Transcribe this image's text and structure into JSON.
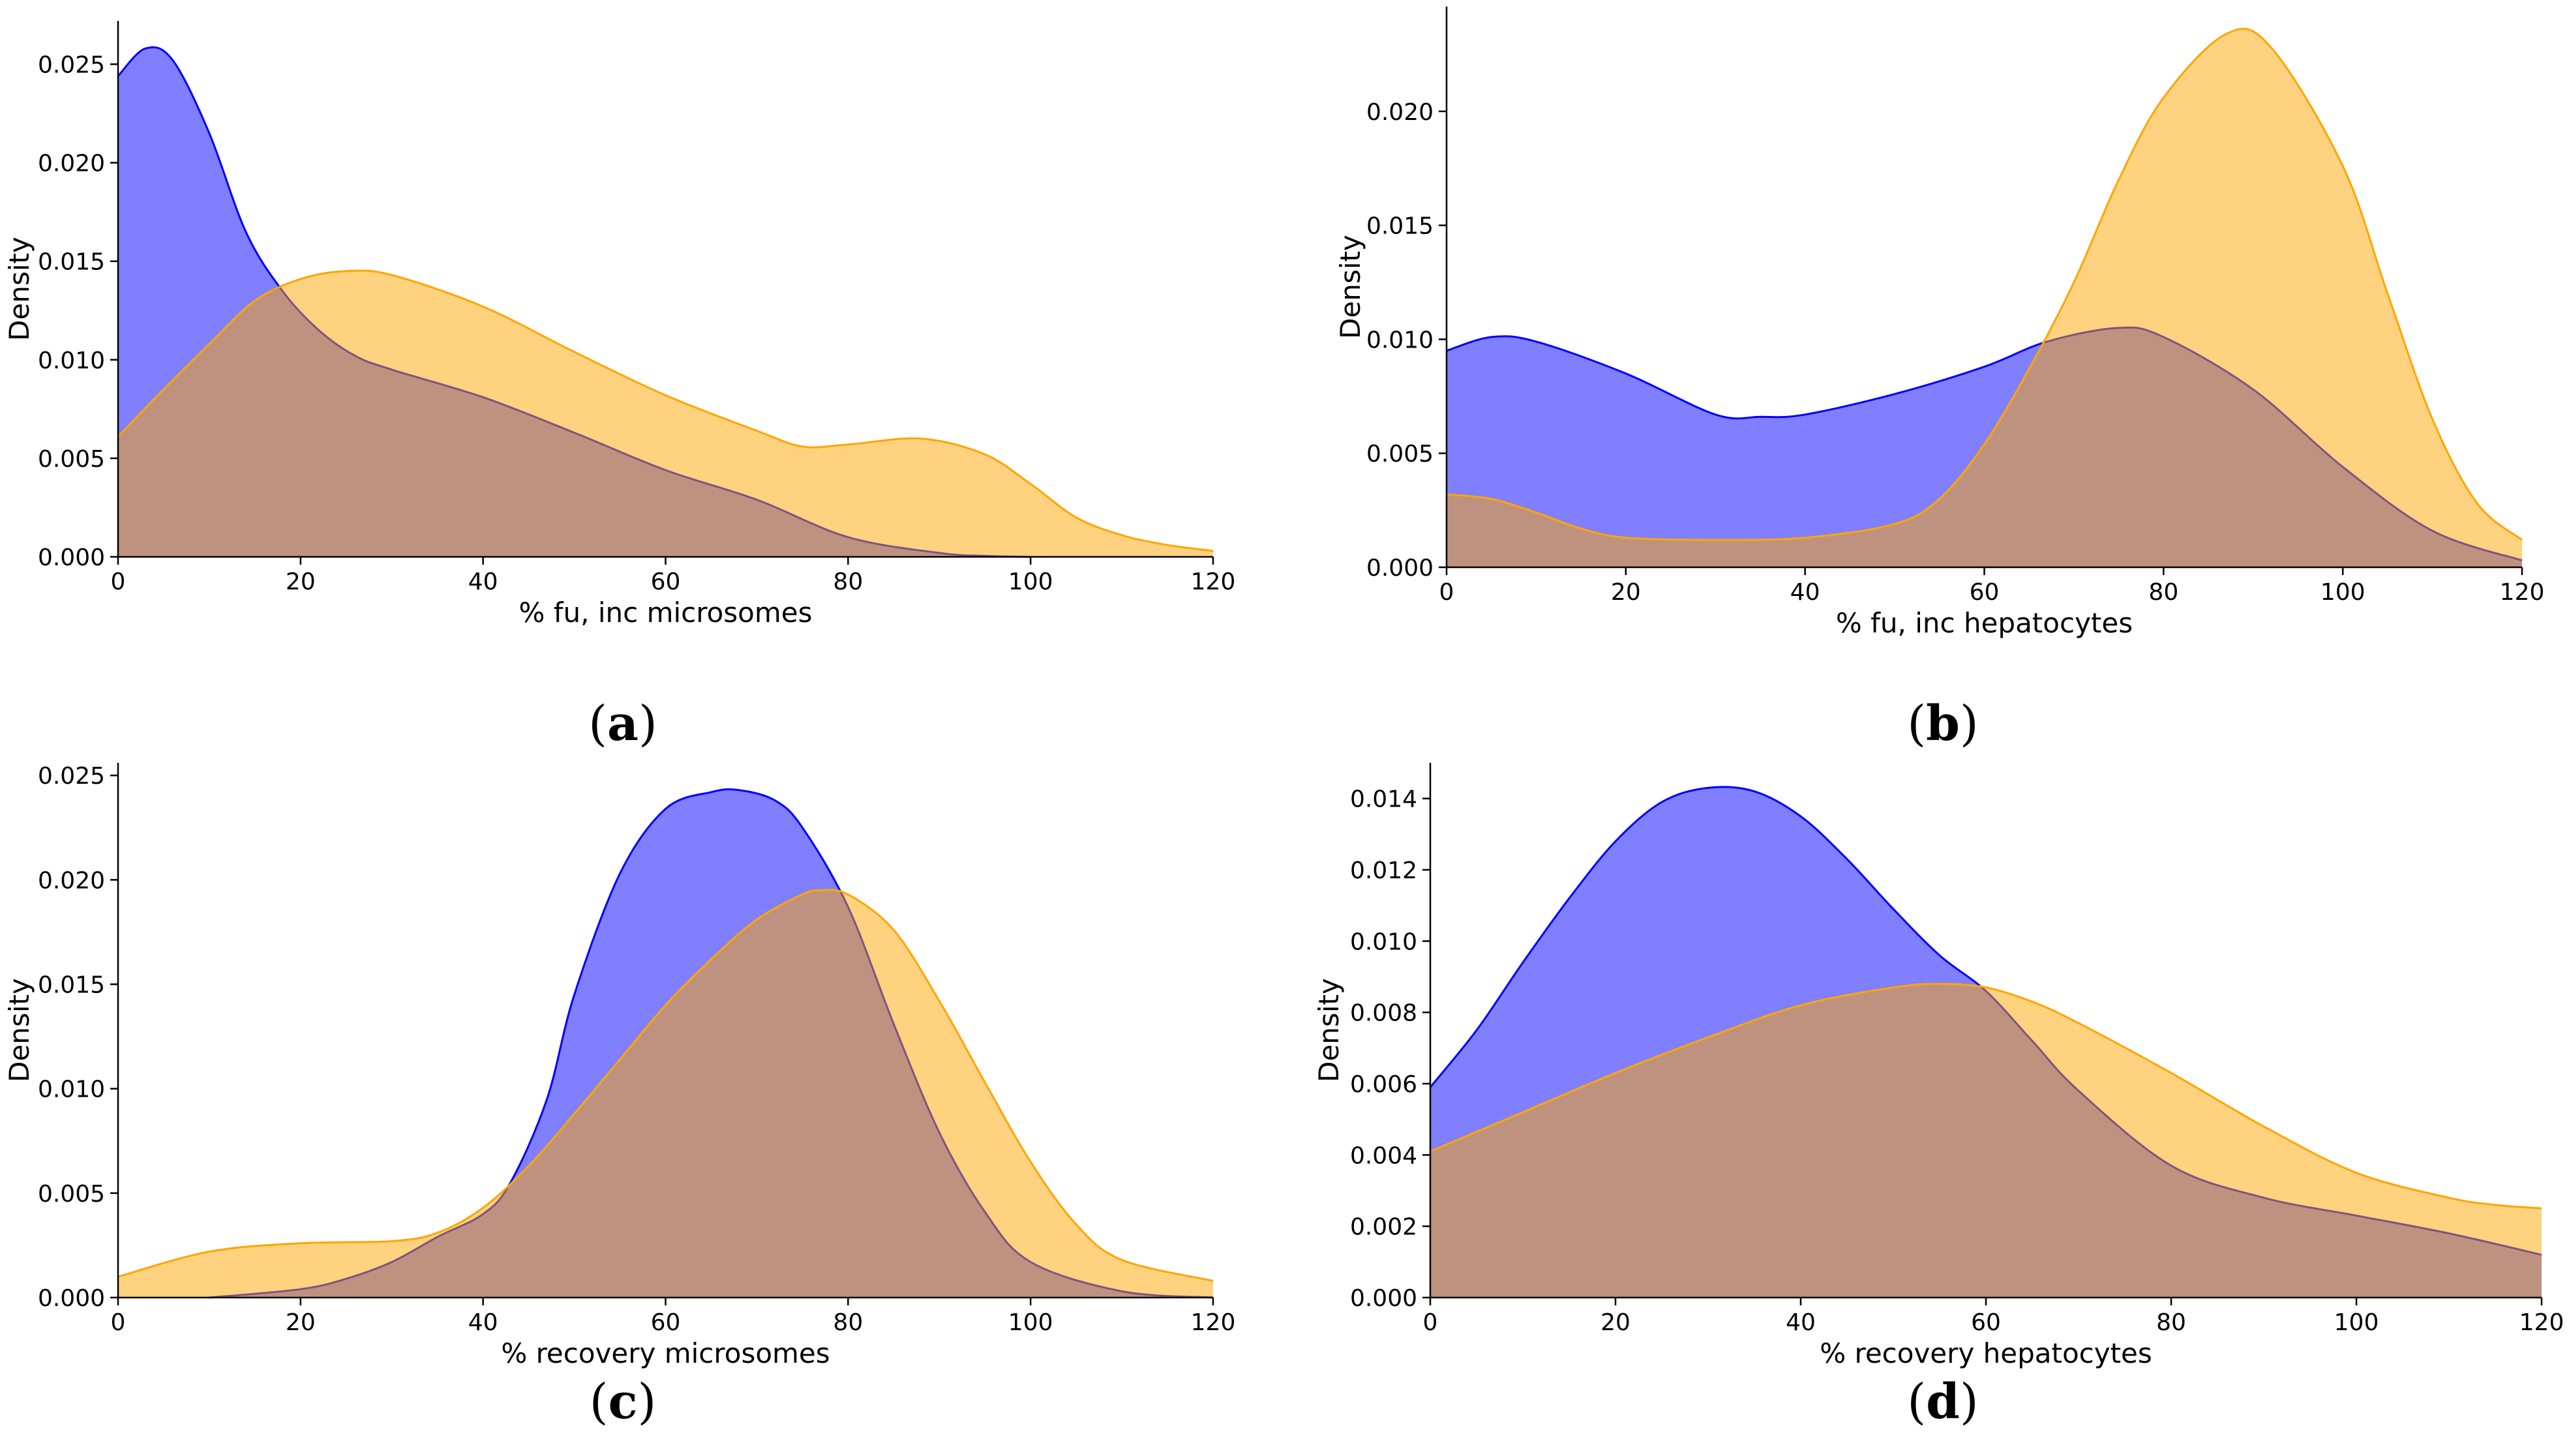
{
  "chart_data": [
    {
      "type": "area",
      "panel_label": [
        "(",
        "a",
        ")"
      ],
      "xlabel": "% fu, inc microsomes",
      "ylabel": "Density",
      "xlim": [
        0,
        120
      ],
      "ylim": [
        0,
        0.0272
      ],
      "xticks": [
        "0",
        "20",
        "40",
        "60",
        "80",
        "100",
        "120"
      ],
      "yticks": [
        "0.000",
        "0.005",
        "0.010",
        "0.015",
        "0.020",
        "0.025"
      ],
      "series": [
        {
          "name": "blue",
          "color": "#0000ff",
          "x": [
            0,
            3,
            6,
            10,
            14,
            18,
            22,
            26,
            30,
            40,
            50,
            60,
            70,
            80,
            90,
            95,
            100
          ],
          "y": [
            0.0244,
            0.0258,
            0.0252,
            0.0215,
            0.0165,
            0.0135,
            0.0115,
            0.0102,
            0.0095,
            0.0081,
            0.0063,
            0.0044,
            0.0029,
            0.001,
            0.0002,
            5e-05,
            0
          ]
        },
        {
          "name": "orange",
          "color": "#ffa500",
          "x": [
            0,
            5,
            10,
            15,
            20,
            25,
            30,
            40,
            50,
            60,
            70,
            75,
            80,
            88,
            95,
            100,
            105,
            110,
            115,
            120
          ],
          "y": [
            0.0061,
            0.0085,
            0.0108,
            0.013,
            0.0141,
            0.0145,
            0.0143,
            0.0127,
            0.0104,
            0.0082,
            0.0064,
            0.0056,
            0.0057,
            0.006,
            0.0052,
            0.0037,
            0.002,
            0.0011,
            0.0006,
            0.0003
          ]
        }
      ]
    },
    {
      "type": "area",
      "panel_label": [
        "(",
        "b",
        ")"
      ],
      "xlabel": "% fu, inc hepatocytes",
      "ylabel": "Density",
      "xlim": [
        0,
        120
      ],
      "ylim": [
        0,
        0.0246
      ],
      "xticks": [
        "0",
        "20",
        "40",
        "60",
        "80",
        "100",
        "120"
      ],
      "yticks": [
        "0.000",
        "0.005",
        "0.010",
        "0.015",
        "0.020"
      ],
      "series": [
        {
          "name": "blue",
          "color": "#0000ff",
          "x": [
            0,
            5,
            10,
            20,
            30,
            35,
            40,
            50,
            60,
            67,
            75,
            80,
            90,
            100,
            110,
            120
          ],
          "y": [
            0.0095,
            0.0101,
            0.0099,
            0.0085,
            0.0067,
            0.0066,
            0.0067,
            0.0076,
            0.0088,
            0.0099,
            0.0105,
            0.0101,
            0.0078,
            0.0044,
            0.0016,
            0.0003
          ]
        },
        {
          "name": "orange",
          "color": "#ffa500",
          "x": [
            0,
            5,
            10,
            15,
            20,
            30,
            40,
            50,
            55,
            60,
            65,
            70,
            75,
            80,
            87,
            92,
            100,
            105,
            110,
            115,
            120
          ],
          "y": [
            0.0032,
            0.003,
            0.0024,
            0.0017,
            0.0013,
            0.0012,
            0.0013,
            0.0019,
            0.003,
            0.0054,
            0.0087,
            0.0125,
            0.017,
            0.0206,
            0.0234,
            0.0228,
            0.0176,
            0.012,
            0.0065,
            0.0028,
            0.0012
          ]
        }
      ]
    },
    {
      "type": "area",
      "panel_label": [
        "(",
        "c",
        ")"
      ],
      "xlabel": "% recovery microsomes",
      "ylabel": "Density",
      "xlim": [
        0,
        120
      ],
      "ylim": [
        0,
        0.0256
      ],
      "xticks": [
        "0",
        "20",
        "40",
        "60",
        "80",
        "100",
        "120"
      ],
      "yticks": [
        "0.000",
        "0.005",
        "0.010",
        "0.015",
        "0.020",
        "0.025"
      ],
      "series": [
        {
          "name": "blue",
          "color": "#0000ff",
          "x": [
            10,
            20,
            25,
            30,
            35,
            40,
            43,
            47,
            50,
            55,
            60,
            65,
            68,
            72,
            75,
            80,
            85,
            90,
            95,
            100,
            110,
            120
          ],
          "y": [
            0,
            0.0004,
            0.0009,
            0.0017,
            0.0029,
            0.004,
            0.0055,
            0.0095,
            0.0145,
            0.0203,
            0.0234,
            0.0242,
            0.0243,
            0.0238,
            0.0225,
            0.0187,
            0.0131,
            0.0079,
            0.0041,
            0.0017,
            0.0003,
            0
          ]
        },
        {
          "name": "orange",
          "color": "#ffa500",
          "x": [
            0,
            10,
            20,
            30,
            35,
            40,
            45,
            50,
            55,
            60,
            65,
            70,
            75,
            77,
            80,
            85,
            90,
            95,
            100,
            105,
            110,
            120
          ],
          "y": [
            0.001,
            0.0022,
            0.0026,
            0.0027,
            0.0031,
            0.0043,
            0.0063,
            0.0088,
            0.0114,
            0.014,
            0.0162,
            0.0181,
            0.0193,
            0.0195,
            0.0193,
            0.0176,
            0.0142,
            0.0103,
            0.0065,
            0.0035,
            0.0018,
            0.0008
          ]
        }
      ]
    },
    {
      "type": "area",
      "panel_label": [
        "(",
        "d",
        ")"
      ],
      "xlabel": "% recovery hepatocytes",
      "ylabel": "Density",
      "xlim": [
        0,
        120
      ],
      "ylim": [
        0,
        0.015
      ],
      "xticks": [
        "0",
        "20",
        "40",
        "60",
        "80",
        "100",
        "120"
      ],
      "yticks": [
        "0.000",
        "0.002",
        "0.004",
        "0.006",
        "0.008",
        "0.010",
        "0.012",
        "0.014"
      ],
      "series": [
        {
          "name": "blue",
          "color": "#0000ff",
          "x": [
            0,
            5,
            10,
            15,
            20,
            25,
            30,
            35,
            40,
            45,
            50,
            55,
            60,
            65,
            70,
            80,
            90,
            100,
            110,
            120
          ],
          "y": [
            0.0059,
            0.0075,
            0.0094,
            0.0112,
            0.0128,
            0.0139,
            0.0143,
            0.0142,
            0.0135,
            0.0123,
            0.0109,
            0.0096,
            0.0086,
            0.0072,
            0.0058,
            0.0037,
            0.0028,
            0.0023,
            0.0018,
            0.0012
          ]
        },
        {
          "name": "orange",
          "color": "#ffa500",
          "x": [
            0,
            10,
            20,
            30,
            40,
            50,
            55,
            60,
            65,
            70,
            80,
            90,
            100,
            110,
            115,
            120
          ],
          "y": [
            0.0041,
            0.0052,
            0.0063,
            0.0073,
            0.0082,
            0.0087,
            0.0088,
            0.0087,
            0.0083,
            0.0077,
            0.0063,
            0.0048,
            0.0035,
            0.0028,
            0.0026,
            0.0025
          ]
        }
      ]
    }
  ]
}
